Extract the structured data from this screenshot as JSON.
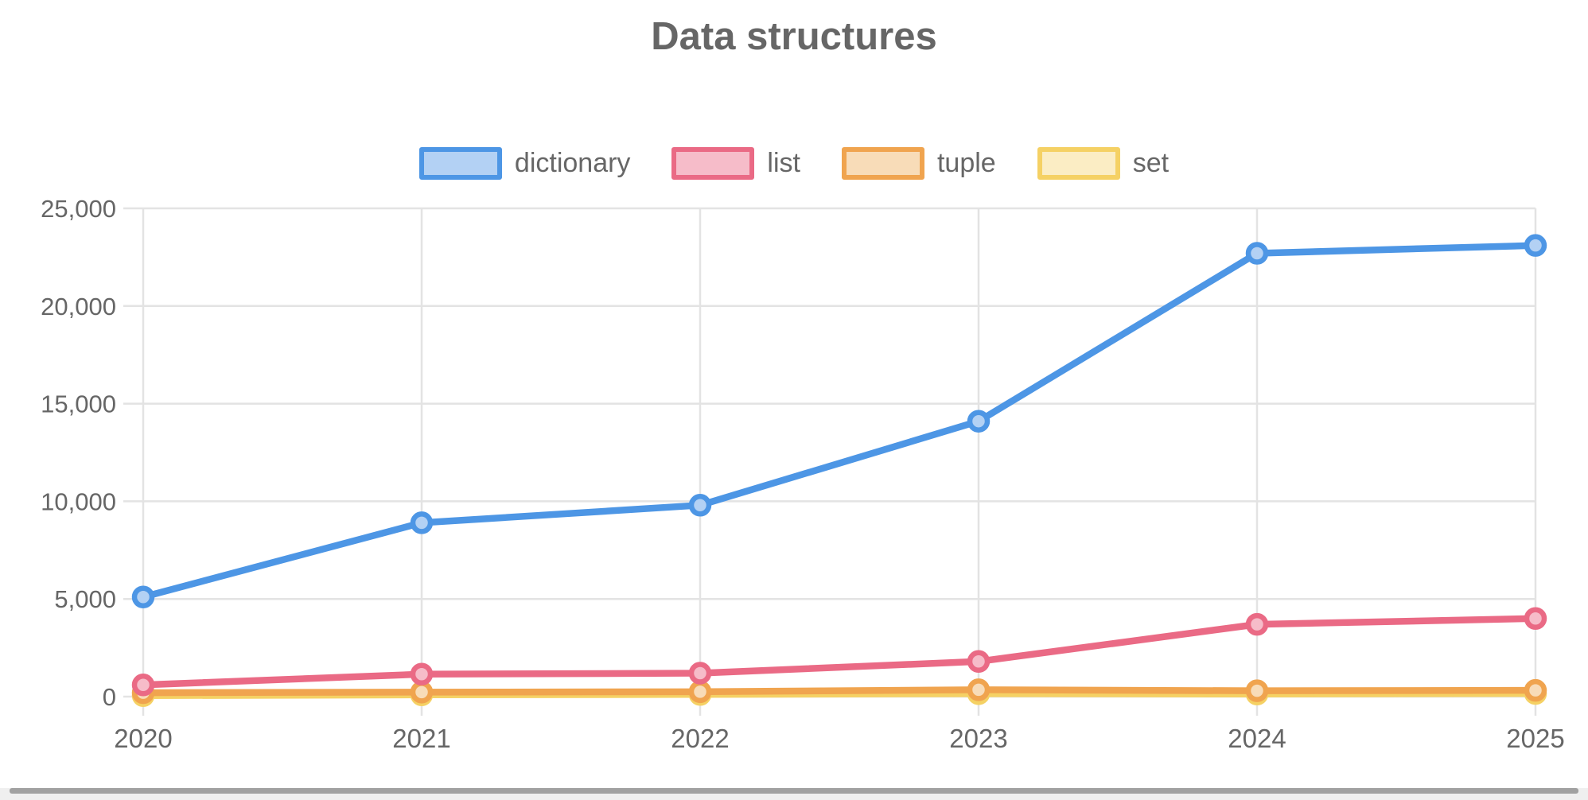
{
  "page": {
    "title": "Data structures"
  },
  "colors": {
    "grid": "#e3e3e3",
    "text": "#666666",
    "background": "#ffffff",
    "scrollbar_thumb": "#a1a1a1",
    "scrollbar_track": "#efefef"
  },
  "chart_data": {
    "type": "line",
    "title": "Data structures",
    "categories": [
      "2020",
      "2021",
      "2022",
      "2023",
      "2024",
      "2025"
    ],
    "series": [
      {
        "name": "dictionary",
        "values": [
          5100,
          8900,
          9800,
          14100,
          22700,
          23100
        ],
        "color": "#4d96e5",
        "fill": "#b3d1f4"
      },
      {
        "name": "list",
        "values": [
          600,
          1150,
          1200,
          1800,
          3700,
          4000
        ],
        "color": "#ea6a85",
        "fill": "#f6bcc9"
      },
      {
        "name": "tuple",
        "values": [
          200,
          230,
          250,
          350,
          300,
          320
        ],
        "color": "#f0a44f",
        "fill": "#f8dcb8"
      },
      {
        "name": "set",
        "values": [
          50,
          90,
          110,
          150,
          130,
          160
        ],
        "color": "#f5d164",
        "fill": "#fbedc4"
      }
    ],
    "xlabel": "",
    "ylabel": "",
    "ylim": [
      0,
      25000
    ],
    "ytick_values": [
      0,
      5000,
      10000,
      15000,
      20000,
      25000
    ],
    "ytick_labels": [
      "0",
      "5,000",
      "10,000",
      "15,000",
      "20,000",
      "25,000"
    ],
    "grid": true,
    "legend_position": "top"
  }
}
